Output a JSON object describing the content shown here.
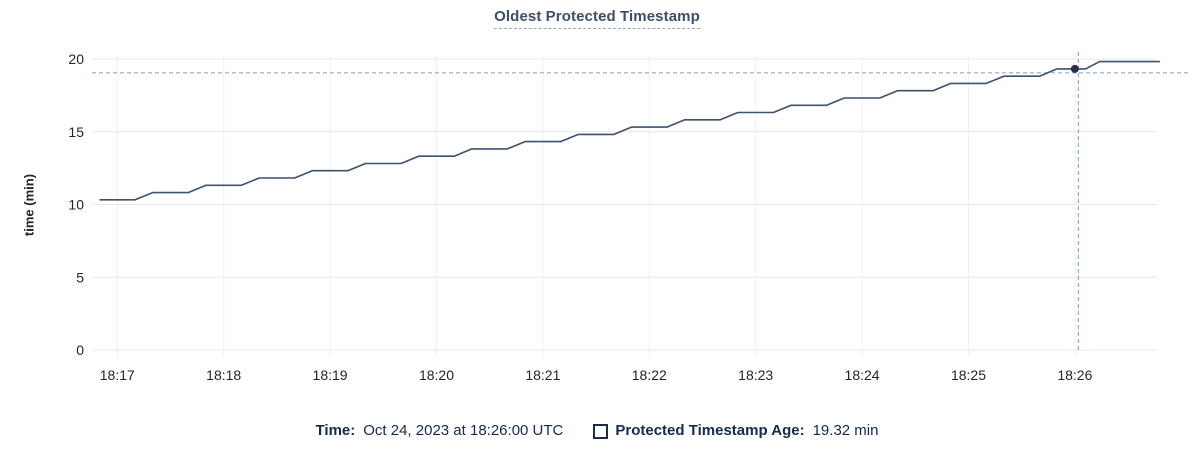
{
  "chart": {
    "title": "Oldest Protected Timestamp",
    "ylabel": "time (min)"
  },
  "legend": {
    "time_label": "Time:",
    "time_value": "Oct 24, 2023 at 18:26:00 UTC",
    "series_label": "Protected Timestamp Age:",
    "series_value": "19.32 min"
  },
  "theme": {
    "title_color": "#3f4e68",
    "legend_text_color": "#152a4e",
    "grid_h_color": "#e9e9e9",
    "grid_v_color": "#f1f1f1",
    "tick_text_color": "#22252a",
    "background": "#ffffff"
  },
  "chart_data": {
    "type": "line",
    "title": "Oldest Protected Timestamp",
    "xlabel": "",
    "ylabel": "time (min)",
    "x_ticks": [
      "18:17",
      "18:18",
      "18:19",
      "18:20",
      "18:21",
      "18:22",
      "18:23",
      "18:24",
      "18:25",
      "18:26"
    ],
    "y_ticks": [
      0,
      5,
      10,
      15,
      20
    ],
    "ylim": [
      0,
      20
    ],
    "x_domain": [
      "18:16:48",
      "18:26:48"
    ],
    "grid": true,
    "legend_position": "bottom",
    "line_color": "#3e516e",
    "marker_color": "#26324e",
    "crosshair_color": "#92a9c2",
    "crosshair": {
      "time": "18:26:02",
      "value": 19.05
    },
    "hover_point": {
      "time": "18:26:00",
      "value": 19.32
    },
    "series": [
      {
        "name": "Protected Timestamp Age",
        "unit": "min",
        "points": [
          [
            "18:16:50",
            10.32
          ],
          [
            "18:17:10",
            10.32
          ],
          [
            "18:17:20",
            10.82
          ],
          [
            "18:17:40",
            10.82
          ],
          [
            "18:17:50",
            11.32
          ],
          [
            "18:18:10",
            11.32
          ],
          [
            "18:18:20",
            11.82
          ],
          [
            "18:18:40",
            11.82
          ],
          [
            "18:18:50",
            12.32
          ],
          [
            "18:19:10",
            12.32
          ],
          [
            "18:19:20",
            12.82
          ],
          [
            "18:19:40",
            12.82
          ],
          [
            "18:19:50",
            13.32
          ],
          [
            "18:20:10",
            13.32
          ],
          [
            "18:20:20",
            13.82
          ],
          [
            "18:20:40",
            13.82
          ],
          [
            "18:20:50",
            14.32
          ],
          [
            "18:21:10",
            14.32
          ],
          [
            "18:21:20",
            14.82
          ],
          [
            "18:21:40",
            14.82
          ],
          [
            "18:21:50",
            15.32
          ],
          [
            "18:22:10",
            15.32
          ],
          [
            "18:22:20",
            15.82
          ],
          [
            "18:22:40",
            15.82
          ],
          [
            "18:22:50",
            16.32
          ],
          [
            "18:23:10",
            16.32
          ],
          [
            "18:23:20",
            16.82
          ],
          [
            "18:23:40",
            16.82
          ],
          [
            "18:23:50",
            17.32
          ],
          [
            "18:24:10",
            17.32
          ],
          [
            "18:24:20",
            17.82
          ],
          [
            "18:24:40",
            17.82
          ],
          [
            "18:24:50",
            18.32
          ],
          [
            "18:25:10",
            18.32
          ],
          [
            "18:25:20",
            18.82
          ],
          [
            "18:25:40",
            18.82
          ],
          [
            "18:25:50",
            19.32
          ],
          [
            "18:26:06",
            19.32
          ],
          [
            "18:26:14",
            19.82
          ],
          [
            "18:26:48",
            19.82
          ]
        ]
      }
    ]
  }
}
